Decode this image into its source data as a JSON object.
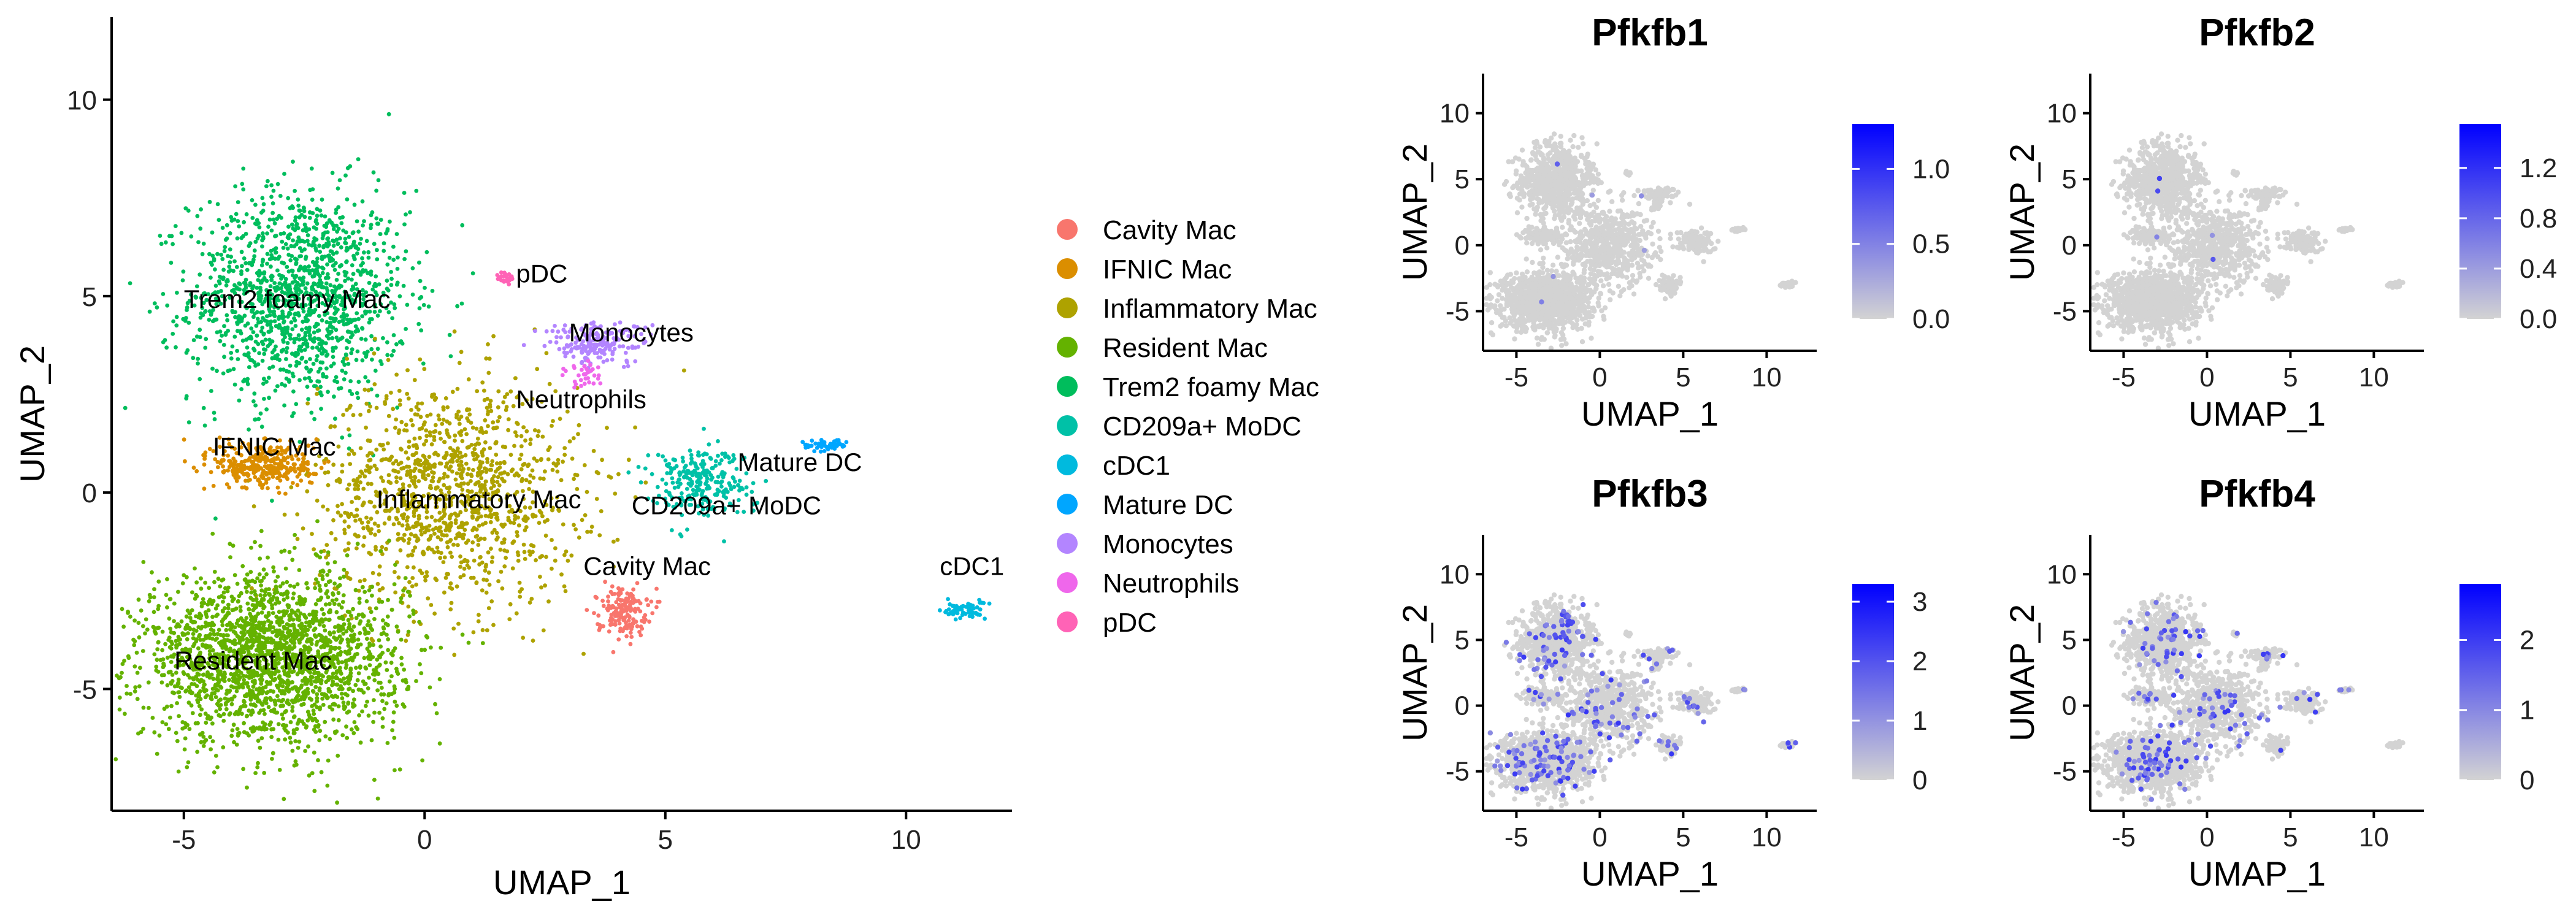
{
  "main_plot": {
    "xlabel": "UMAP_1",
    "ylabel": "UMAP_2",
    "x_ticks": [
      "-5",
      "0",
      "5",
      "10"
    ],
    "y_ticks": [
      "-5",
      "0",
      "5",
      "10"
    ],
    "legend": [
      {
        "label": "Cavity Mac",
        "color": "#F8766D"
      },
      {
        "label": "IFNIC Mac",
        "color": "#DB8E00"
      },
      {
        "label": "Inflammatory Mac",
        "color": "#AEA200"
      },
      {
        "label": "Resident Mac",
        "color": "#64B200"
      },
      {
        "label": "Trem2 foamy Mac",
        "color": "#00BD5C"
      },
      {
        "label": "CD209a+ MoDC",
        "color": "#00C1A7"
      },
      {
        "label": "cDC1",
        "color": "#00BADE"
      },
      {
        "label": "Mature DC",
        "color": "#00A6FF"
      },
      {
        "label": "Monocytes",
        "color": "#B385FF"
      },
      {
        "label": "Neutrophils",
        "color": "#EF67EB"
      },
      {
        "label": "pDC",
        "color": "#FF63B6"
      }
    ],
    "cluster_labels": [
      "Trem2 foamy Mac",
      "pDC",
      "Monocytes",
      "Neutrophils",
      "IFNIC Mac",
      "Mature DC",
      "Inflammatory Mac",
      "CD209a+ MoDC",
      "Cavity Mac",
      "cDC1",
      "Resident Mac"
    ]
  },
  "feature_panels": [
    {
      "title": "Pfkfb1",
      "xlabel": "UMAP_1",
      "ylabel": "UMAP_2",
      "x_ticks": [
        "-5",
        "0",
        "5",
        "10"
      ],
      "y_ticks": [
        "-5",
        "0",
        "5",
        "10"
      ],
      "colorbar_ticks": [
        "0.0",
        "0.5",
        "1.0"
      ]
    },
    {
      "title": "Pfkfb2",
      "xlabel": "UMAP_1",
      "ylabel": "UMAP_2",
      "x_ticks": [
        "-5",
        "0",
        "5",
        "10"
      ],
      "y_ticks": [
        "-5",
        "0",
        "5",
        "10"
      ],
      "colorbar_ticks": [
        "0.0",
        "0.4",
        "0.8",
        "1.2"
      ]
    },
    {
      "title": "Pfkfb3",
      "xlabel": "UMAP_1",
      "ylabel": "UMAP_2",
      "x_ticks": [
        "-5",
        "0",
        "5",
        "10"
      ],
      "y_ticks": [
        "-5",
        "0",
        "5",
        "10"
      ],
      "colorbar_ticks": [
        "0",
        "1",
        "2",
        "3"
      ]
    },
    {
      "title": "Pfkfb4",
      "xlabel": "UMAP_1",
      "ylabel": "UMAP_2",
      "x_ticks": [
        "-5",
        "0",
        "5",
        "10"
      ],
      "y_ticks": [
        "-5",
        "0",
        "5",
        "10"
      ],
      "colorbar_ticks": [
        "0",
        "1",
        "2"
      ]
    }
  ],
  "colors": {
    "low": "#D3D3D3",
    "high": "#0000FF",
    "axis": "#000000"
  },
  "chart_data": [
    {
      "type": "scatter",
      "title": "",
      "xlabel": "UMAP_1",
      "ylabel": "UMAP_2",
      "xlim": [
        -6.5,
        12.2
      ],
      "ylim": [
        -8.1,
        12.1
      ],
      "grid": false,
      "legend_placement": "right",
      "series": [
        {
          "name": "Trem2 foamy Mac",
          "color": "#00BD5C",
          "centroid": [
            -2.6,
            5.0
          ],
          "spread": [
            1.5,
            1.8
          ],
          "weight": 0.21
        },
        {
          "name": "Inflammatory Mac",
          "color": "#AEA200",
          "centroid": [
            0.5,
            0.0
          ],
          "spread": [
            1.8,
            1.9
          ],
          "weight": 0.19
        },
        {
          "name": "Resident Mac",
          "color": "#64B200",
          "centroid": [
            -3.2,
            -4.2
          ],
          "spread": [
            1.8,
            1.4
          ],
          "weight": 0.34
        },
        {
          "name": "IFNIC Mac",
          "color": "#DB8E00",
          "centroid": [
            -3.3,
            0.7
          ],
          "spread": [
            0.7,
            0.4
          ],
          "weight": 0.05
        },
        {
          "name": "Cavity Mac",
          "color": "#F8766D",
          "centroid": [
            4.1,
            -3.0
          ],
          "spread": [
            0.35,
            0.4
          ],
          "weight": 0.025
        },
        {
          "name": "CD209a+ MoDC",
          "color": "#00C1A7",
          "centroid": [
            5.7,
            0.3
          ],
          "spread": [
            0.7,
            0.6
          ],
          "weight": 0.04
        },
        {
          "name": "Monocytes",
          "color": "#B385FF",
          "centroid": [
            3.6,
            3.8
          ],
          "spread": [
            0.7,
            0.35
          ],
          "weight": 0.03
        },
        {
          "name": "Neutrophils",
          "color": "#EF67EB",
          "centroid": [
            3.3,
            3.0
          ],
          "spread": [
            0.3,
            0.25
          ],
          "weight": 0.005
        },
        {
          "name": "Mature DC",
          "color": "#00A6FF",
          "centroid": [
            8.3,
            1.2
          ],
          "spread": [
            0.3,
            0.1
          ],
          "weight": 0.008
        },
        {
          "name": "cDC1",
          "color": "#00BADE",
          "centroid": [
            11.2,
            -3.0
          ],
          "spread": [
            0.3,
            0.15
          ],
          "weight": 0.01
        },
        {
          "name": "pDC",
          "color": "#FF63B6",
          "centroid": [
            1.7,
            5.5
          ],
          "spread": [
            0.12,
            0.12
          ],
          "weight": 0.003
        }
      ]
    },
    {
      "type": "scatter",
      "title": "Pfkfb1",
      "xlabel": "UMAP_1",
      "ylabel": "UMAP_2",
      "xlim": [
        -7,
        13
      ],
      "ylim": [
        -8,
        13
      ],
      "color_scale": [
        0.0,
        1.3
      ],
      "expression_fraction": 0.002
    },
    {
      "type": "scatter",
      "title": "Pfkfb2",
      "xlabel": "UMAP_1",
      "ylabel": "UMAP_2",
      "xlim": [
        -7,
        13
      ],
      "ylim": [
        -8,
        13
      ],
      "color_scale": [
        0.0,
        1.55
      ],
      "expression_fraction": 0.003
    },
    {
      "type": "scatter",
      "title": "Pfkfb3",
      "xlabel": "UMAP_1",
      "ylabel": "UMAP_2",
      "xlim": [
        -7,
        13
      ],
      "ylim": [
        -8,
        13
      ],
      "color_scale": [
        0.0,
        3.3
      ],
      "expression_fraction": 0.08
    },
    {
      "type": "scatter",
      "title": "Pfkfb4",
      "xlabel": "UMAP_1",
      "ylabel": "UMAP_2",
      "xlim": [
        -7,
        13
      ],
      "ylim": [
        -8,
        13
      ],
      "color_scale": [
        0.0,
        2.8
      ],
      "expression_fraction": 0.06
    }
  ]
}
